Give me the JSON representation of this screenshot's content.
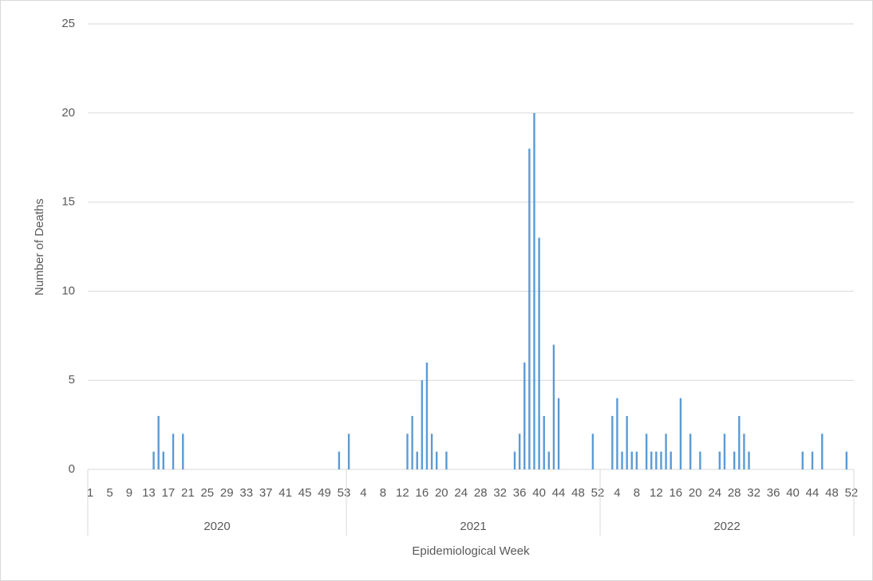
{
  "chart_data": {
    "type": "bar",
    "y_label": "Number of Deaths",
    "x_label": "Epidemiological Week",
    "color": "#5b9bd5",
    "ylim": [
      0,
      25
    ],
    "yticks": [
      0,
      5,
      10,
      15,
      20,
      25
    ],
    "grid": true,
    "groups": [
      {
        "name": "2020",
        "categories": [
          "1",
          null,
          null,
          null,
          "5",
          null,
          null,
          null,
          "9",
          null,
          null,
          null,
          "13",
          null,
          null,
          null,
          "17",
          null,
          null,
          null,
          "21",
          null,
          null,
          null,
          "25",
          null,
          null,
          null,
          "29",
          null,
          null,
          null,
          "33",
          null,
          null,
          null,
          "37",
          null,
          null,
          null,
          "41",
          null,
          null,
          null,
          "45",
          null,
          null,
          null,
          "49",
          null,
          null,
          null,
          "53"
        ],
        "values": [
          0,
          0,
          0,
          0,
          0,
          0,
          0,
          0,
          0,
          0,
          0,
          0,
          0,
          1,
          3,
          1,
          0,
          2,
          0,
          2,
          0,
          0,
          0,
          0,
          0,
          0,
          0,
          0,
          0,
          0,
          0,
          0,
          0,
          0,
          0,
          0,
          0,
          0,
          0,
          0,
          0,
          0,
          0,
          0,
          0,
          0,
          0,
          0,
          0,
          0,
          0,
          1,
          0
        ]
      },
      {
        "name": "2021",
        "categories": [
          null,
          null,
          null,
          "4",
          null,
          null,
          null,
          "8",
          null,
          null,
          null,
          "12",
          null,
          null,
          null,
          "16",
          null,
          null,
          null,
          "20",
          null,
          null,
          null,
          "24",
          null,
          null,
          null,
          "28",
          null,
          null,
          null,
          "32",
          null,
          null,
          null,
          "36",
          null,
          null,
          null,
          "40",
          null,
          null,
          null,
          "44",
          null,
          null,
          null,
          "48",
          null,
          null,
          null,
          "52"
        ],
        "values": [
          2,
          0,
          0,
          0,
          0,
          0,
          0,
          0,
          0,
          0,
          0,
          0,
          2,
          3,
          1,
          5,
          6,
          2,
          1,
          0,
          1,
          0,
          0,
          0,
          0,
          0,
          0,
          0,
          0,
          0,
          0,
          0,
          0,
          0,
          1,
          2,
          6,
          18,
          20,
          13,
          3,
          1,
          7,
          4,
          0,
          0,
          0,
          0,
          0,
          0,
          2,
          0
        ]
      },
      {
        "name": "2022",
        "categories": [
          null,
          null,
          null,
          "4",
          null,
          null,
          null,
          "8",
          null,
          null,
          null,
          "12",
          null,
          null,
          null,
          "16",
          null,
          null,
          null,
          "20",
          null,
          null,
          null,
          "24",
          null,
          null,
          null,
          "28",
          null,
          null,
          null,
          "32",
          null,
          null,
          null,
          "36",
          null,
          null,
          null,
          "40",
          null,
          null,
          null,
          "44",
          null,
          null,
          null,
          "48",
          null,
          null,
          null,
          "52"
        ],
        "values": [
          0,
          0,
          3,
          4,
          1,
          3,
          1,
          1,
          0,
          2,
          1,
          1,
          1,
          2,
          1,
          0,
          4,
          0,
          2,
          0,
          1,
          0,
          0,
          0,
          1,
          2,
          0,
          1,
          3,
          2,
          1,
          0,
          0,
          0,
          0,
          0,
          0,
          0,
          0,
          0,
          0,
          1,
          0,
          1,
          0,
          2,
          0,
          0,
          0,
          0,
          1,
          0
        ]
      }
    ]
  }
}
